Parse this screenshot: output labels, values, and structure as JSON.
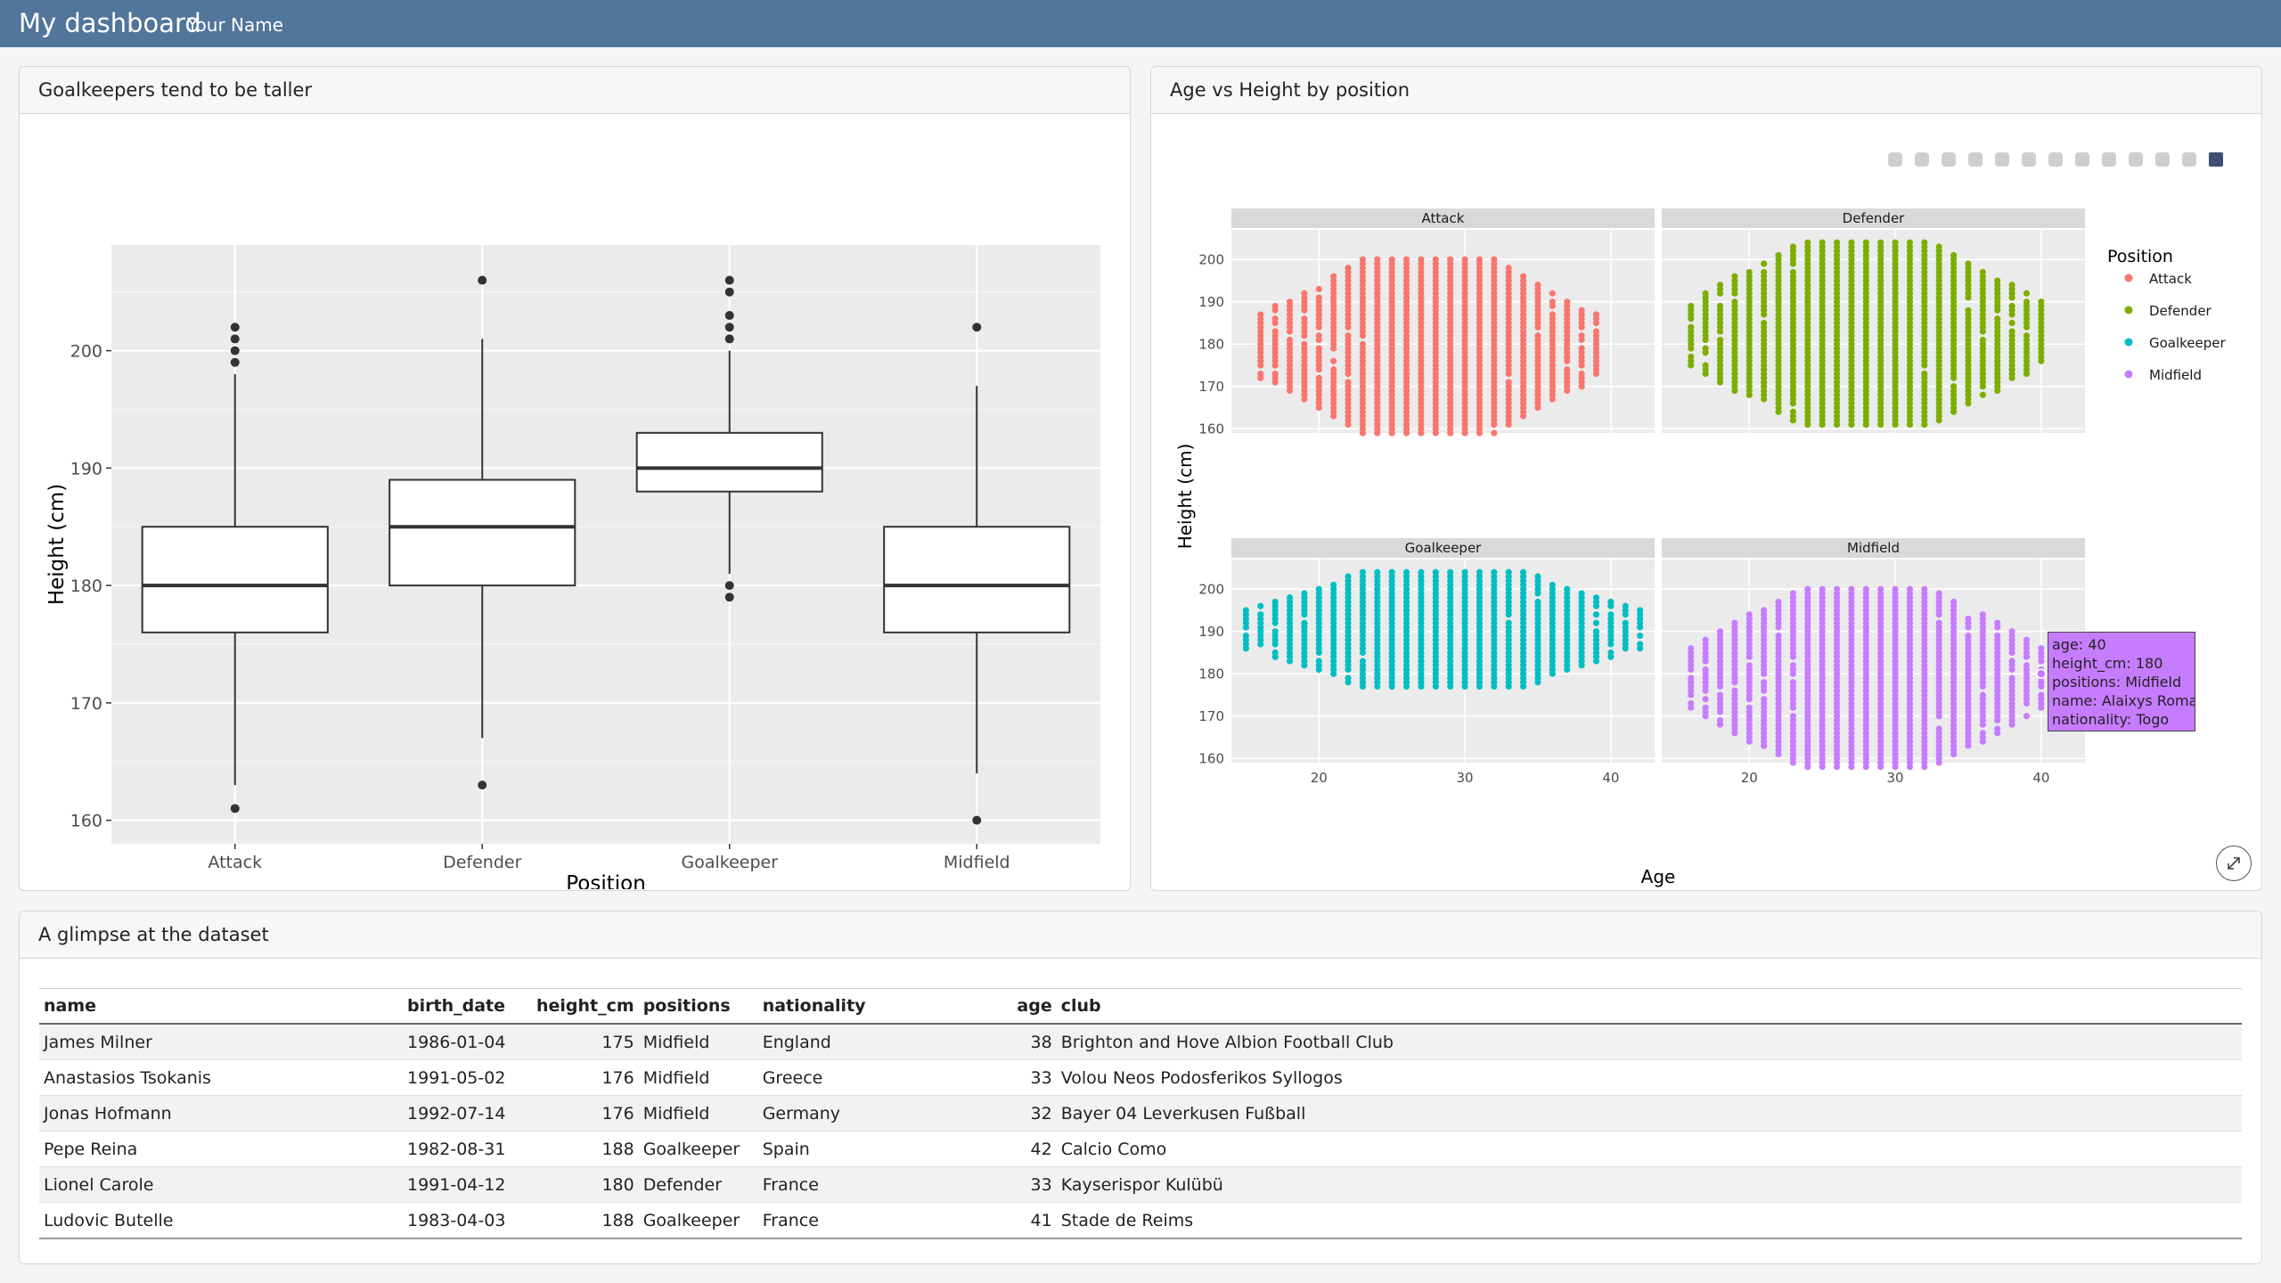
{
  "header": {
    "title": "My dashboard",
    "author": "Your Name"
  },
  "boxplot_card": {
    "title": "Goalkeepers tend to be taller",
    "xlabel": "Position",
    "ylabel": "Height (cm)",
    "y_ticks": [
      "160",
      "170",
      "180",
      "190",
      "200"
    ]
  },
  "scatter_card": {
    "title": "Age vs Height by position",
    "xlabel": "Age",
    "ylabel": "Height (cm)",
    "legend_title": "Position",
    "x_ticks": [
      "20",
      "30",
      "40"
    ],
    "y_ticks": [
      "160",
      "170",
      "180",
      "190",
      "200"
    ],
    "tooltip": {
      "line1": "age: 40",
      "line2": "height_cm: 180",
      "line3": "positions: Midfield",
      "line4": "name: Alaixys Romao",
      "line5": "nationality: Togo"
    },
    "toolbar": [
      "camera-icon",
      "zoom-icon",
      "pan-icon",
      "box-select-icon",
      "lasso-icon",
      "zoom-in-icon",
      "zoom-out-icon",
      "autoscale-icon",
      "reset-axes-icon",
      "spike-lines-icon",
      "hover-closest-icon",
      "hover-compare-icon",
      "plotly-logo-icon"
    ]
  },
  "table_card": {
    "title": "A glimpse at the dataset",
    "columns": [
      "name",
      "birth_date",
      "height_cm",
      "positions",
      "nationality",
      "age",
      "club"
    ],
    "rows": [
      [
        "James Milner",
        "1986-01-04",
        "175",
        "Midfield",
        "England",
        "38",
        "Brighton and Hove Albion Football Club"
      ],
      [
        "Anastasios Tsokanis",
        "1991-05-02",
        "176",
        "Midfield",
        "Greece",
        "33",
        "Volou Neos Podosferikos Syllogos"
      ],
      [
        "Jonas Hofmann",
        "1992-07-14",
        "176",
        "Midfield",
        "Germany",
        "32",
        "Bayer 04 Leverkusen Fußball"
      ],
      [
        "Pepe Reina",
        "1982-08-31",
        "188",
        "Goalkeeper",
        "Spain",
        "42",
        "Calcio Como"
      ],
      [
        "Lionel Carole",
        "1991-04-12",
        "180",
        "Defender",
        "France",
        "33",
        "Kayserispor Kulübü"
      ],
      [
        "Ludovic Butelle",
        "1983-04-03",
        "188",
        "Goalkeeper",
        "France",
        "41",
        "Stade de Reims"
      ]
    ]
  },
  "chart_data": [
    {
      "type": "box",
      "title": "Goalkeepers tend to be taller",
      "xlabel": "Position",
      "ylabel": "Height (cm)",
      "ylim": [
        158,
        209
      ],
      "categories": [
        "Attack",
        "Defender",
        "Goalkeeper",
        "Midfield"
      ],
      "boxes": [
        {
          "category": "Attack",
          "q1": 176,
          "median": 180,
          "q3": 185,
          "whisker_low": 163,
          "whisker_high": 198,
          "outliers": [
            161,
            199,
            200,
            201,
            202
          ]
        },
        {
          "category": "Defender",
          "q1": 180,
          "median": 185,
          "q3": 189,
          "whisker_low": 167,
          "whisker_high": 201,
          "outliers": [
            163,
            206
          ]
        },
        {
          "category": "Goalkeeper",
          "q1": 188,
          "median": 190,
          "q3": 193,
          "whisker_low": 181,
          "whisker_high": 200,
          "outliers": [
            179,
            180,
            201,
            202,
            203,
            205,
            206
          ]
        },
        {
          "category": "Midfield",
          "q1": 176,
          "median": 180,
          "q3": 185,
          "whisker_low": 164,
          "whisker_high": 197,
          "outliers": [
            160,
            202
          ]
        }
      ],
      "grid": true
    },
    {
      "type": "scatter",
      "title": "Age vs Height by position",
      "xlabel": "Age",
      "ylabel": "Height (cm)",
      "xlim": [
        14,
        43
      ],
      "ylim": [
        159,
        207
      ],
      "legend_position": "right",
      "facets": [
        {
          "name": "Attack",
          "color": "#f8766d",
          "age_range": [
            16,
            39
          ],
          "height_range": [
            161,
            202
          ]
        },
        {
          "name": "Defender",
          "color": "#7cae00",
          "age_range": [
            16,
            40
          ],
          "height_range": [
            163,
            206
          ]
        },
        {
          "name": "Goalkeeper",
          "color": "#00bfc4",
          "age_range": [
            15,
            42
          ],
          "height_range": [
            179,
            206
          ]
        },
        {
          "name": "Midfield",
          "color": "#c77cff",
          "age_range": [
            16,
            40
          ],
          "height_range": [
            160,
            202
          ]
        }
      ],
      "highlighted_point": {
        "age": 40,
        "height_cm": 180,
        "positions": "Midfield",
        "name": "Alaixys Romao",
        "nationality": "Togo"
      },
      "grid": true
    }
  ]
}
